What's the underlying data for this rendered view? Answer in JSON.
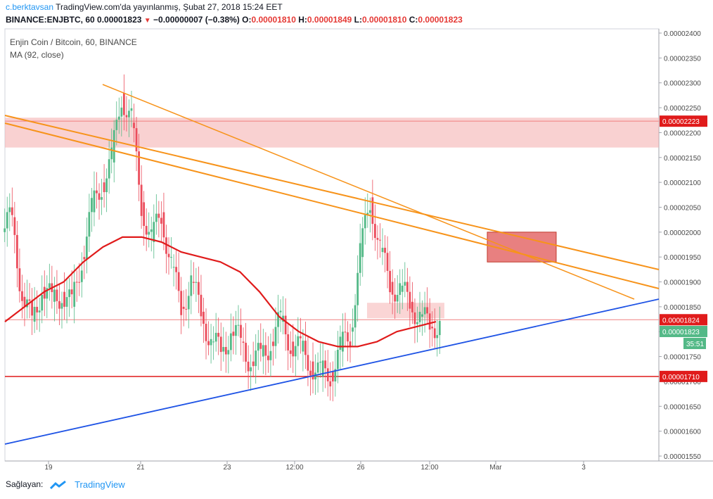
{
  "header": {
    "author": "c.berktavsan",
    "published": "TradingView.com'da yayınlanmış, Şubat 27, 2018 15:24 EET",
    "symbol_interval": "BINANCE:ENJBTC, 60",
    "last": "0.00001823",
    "change": "−0.00000007 (−0.38%)",
    "o_label": "O:",
    "o_value": "0.00001810",
    "h_label": "H:",
    "h_value": "0.00001849",
    "l_label": "L:",
    "l_value": "0.00001810",
    "c_label": "C:",
    "c_value": "0.00001823"
  },
  "legend": {
    "title": "Enjin Coin / Bitcoin, 60, BINANCE",
    "indicator": "MA (92, close)"
  },
  "footer": {
    "label": "Sağlayan:",
    "brand": "TradingView"
  },
  "colors": {
    "up": "#53b987",
    "down": "#eb4d5c",
    "ma": "#e01b1b",
    "trend_orange": "#f7931a",
    "trend_blue": "#1e53e5",
    "zone_pink": "#f5b3b3",
    "zone_red": "#e05555"
  },
  "chart_data": {
    "type": "candlestick",
    "ylim": [
      1.55e-05,
      2.41e-05
    ],
    "y_ticks": [
      "0.00002400",
      "0.00002350",
      "0.00002300",
      "0.00002250",
      "0.00002200",
      "0.00002150",
      "0.00002100",
      "0.00002050",
      "0.00002000",
      "0.00001950",
      "0.00001900",
      "0.00001850",
      "0.00001800",
      "0.00001750",
      "0.00001700",
      "0.00001650",
      "0.00001600",
      "0.00001550"
    ],
    "x_ticks": [
      "19",
      "21",
      "23",
      "12:00",
      "26",
      "12:00",
      "Mar",
      "3"
    ],
    "price_labels": [
      {
        "text": "0.00002223",
        "value": 2.223e-05,
        "color": "#e01b1b"
      },
      {
        "text": "0.00001824",
        "value": 1.824e-05,
        "color": "#e01b1b"
      },
      {
        "text": "0.00001823",
        "value": 1.823e-05,
        "color": "#53b987"
      },
      {
        "text": "35:51",
        "value": 1.78e-05,
        "color": "#53b987"
      },
      {
        "text": "0.00001710",
        "value": 1.71e-05,
        "color": "#e01b1b"
      }
    ],
    "horizontal_lines": [
      {
        "value": 2.223e-05,
        "color": "#f08080",
        "width": 1
      },
      {
        "value": 1.824e-05,
        "color": "#f08080",
        "width": 1
      },
      {
        "value": 1.71e-05,
        "color": "#e01b1b",
        "width": 1.5
      }
    ],
    "ma_92": [
      1.82e-05,
      1.85e-05,
      1.88e-05,
      1.9e-05,
      1.94e-05,
      1.97e-05,
      1.99e-05,
      1.99e-05,
      1.98e-05,
      1.96e-05,
      1.95e-05,
      1.94e-05,
      1.92e-05,
      1.88e-05,
      1.83e-05,
      1.8e-05,
      1.78e-05,
      1.77e-05,
      1.77e-05,
      1.78e-05,
      1.8e-05,
      1.81e-05,
      1.82e-05
    ],
    "candles_close": [
      2.03e-05,
      1.87e-05,
      1.82e-05,
      1.89e-05,
      1.86e-05,
      1.88e-05,
      1.85e-05,
      1.95e-05,
      2.04e-05,
      2.1e-05,
      2.14e-05,
      2.28e-05,
      2.22e-05,
      2.06e-05,
      1.98e-05,
      2.04e-05,
      1.93e-05,
      1.85e-05,
      1.9e-05,
      1.84e-05,
      1.78e-05,
      1.76e-05,
      1.8e-05,
      1.78e-05,
      1.74e-05,
      1.75e-05,
      1.78e-05,
      1.82e-05,
      1.78e-05,
      1.76e-05,
      1.74e-05,
      1.71e-05,
      1.72e-05,
      1.76e-05,
      1.8e-05,
      1.95e-05,
      2.07e-05,
      1.96e-05,
      1.9e-05,
      1.88e-05,
      1.86e-05,
      1.83e-05,
      1.81e-05,
      1.82e-05
    ]
  }
}
